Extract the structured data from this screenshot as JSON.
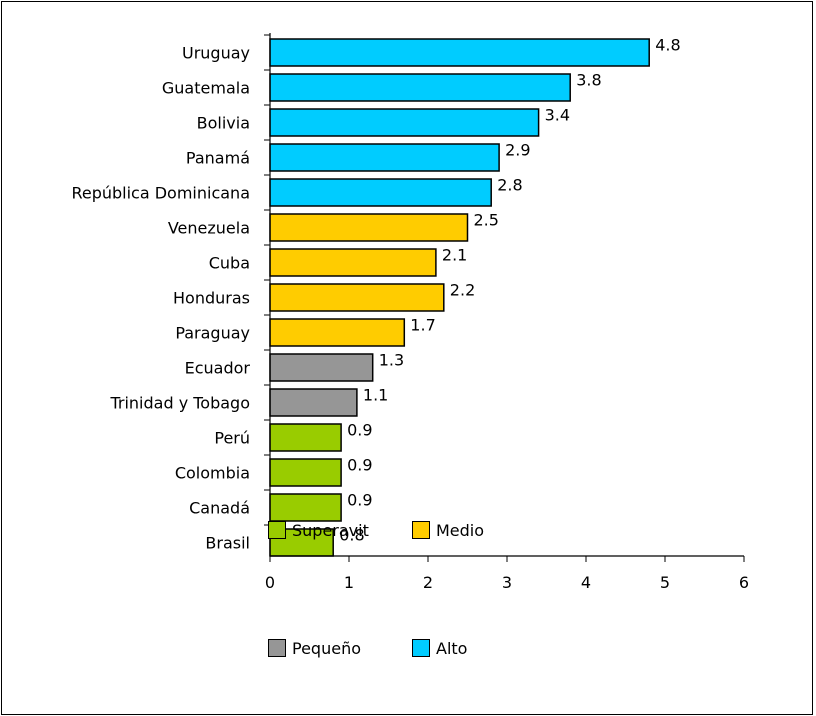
{
  "chart_data": {
    "type": "bar",
    "orientation": "horizontal",
    "title": "",
    "xlabel": "",
    "ylabel": "",
    "xlim": [
      0,
      6
    ],
    "x_ticks": [
      "0",
      "1",
      "2",
      "3",
      "4",
      "5",
      "6"
    ],
    "grid": false,
    "legend_position": "bottom-left",
    "categories": [
      "Uruguay",
      "Guatemala",
      "Bolivia",
      "Panamá",
      "República Dominicana",
      "Venezuela",
      "Cuba",
      "Honduras",
      "Paraguay",
      "Ecuador",
      "Trinidad y Tobago",
      "Perú",
      "Colombia",
      "Canadá",
      "Brasil"
    ],
    "values": [
      4.8,
      3.8,
      3.4,
      2.9,
      2.8,
      2.5,
      2.1,
      2.2,
      1.7,
      1.3,
      1.1,
      0.9,
      0.9,
      0.9,
      0.8
    ],
    "value_labels": [
      "4.8",
      "3.8",
      "3.4",
      "2.9",
      "2.8",
      "2.5",
      "2.1",
      "2.2",
      "1.7",
      "1.3",
      "1.1",
      "0.9",
      "0.9",
      "0.9",
      "0.8"
    ],
    "groups": [
      "Alto",
      "Alto",
      "Alto",
      "Alto",
      "Alto",
      "Medio",
      "Medio",
      "Medio",
      "Medio",
      "Pequeño",
      "Pequeño",
      "Superavit",
      "Superavit",
      "Superavit",
      "Superavit"
    ],
    "legend": [
      {
        "key": "Superavit",
        "label": "Superavit",
        "color": "#99CC00"
      },
      {
        "key": "Medio",
        "label": "Medio",
        "color": "#FFCC00"
      },
      {
        "key": "Pequeño",
        "label": "Pequeño",
        "color": "#969696"
      },
      {
        "key": "Alto",
        "label": "Alto",
        "color": "#00CCFF"
      }
    ]
  }
}
